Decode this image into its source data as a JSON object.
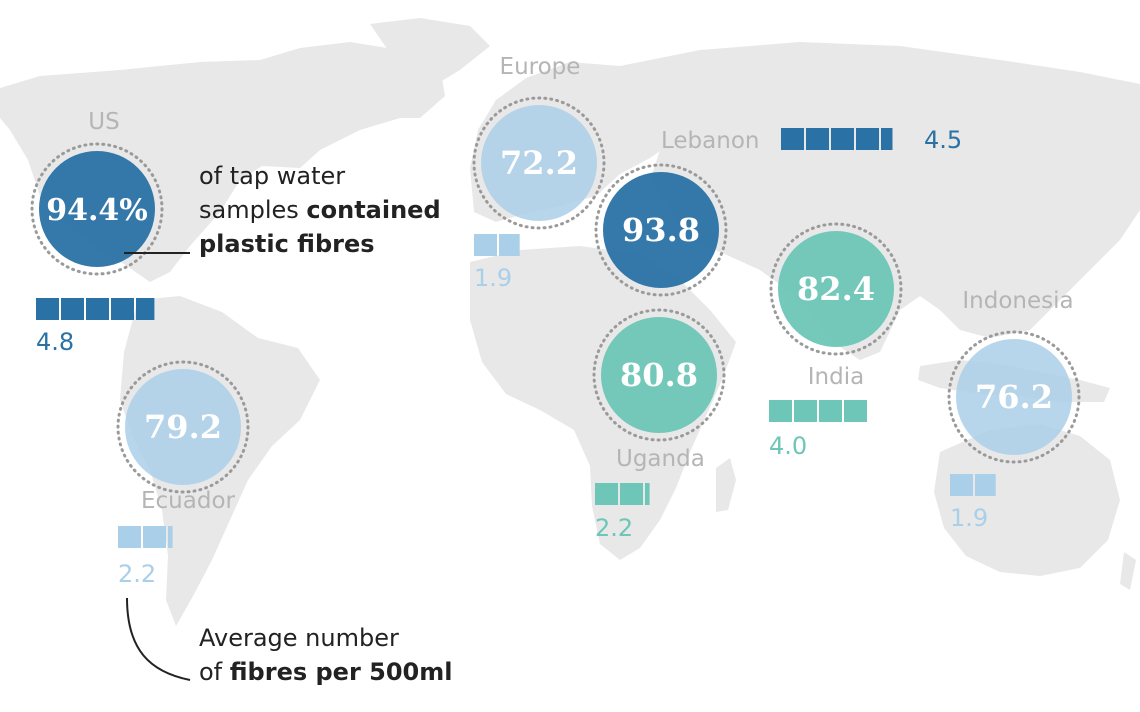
{
  "colors": {
    "land": "#e8e8e8",
    "high": "#2a72a6",
    "mid_blue": "#aacfe9",
    "teal": "#6dc6b7",
    "ring": "#9a9a9a",
    "label_grey": "#b5b5b5",
    "text": "#222222"
  },
  "annotations": {
    "percent_note": {
      "line1": "of tap water",
      "line2_plain": "samples ",
      "line2_bold": "contained",
      "line3_bold": "plastic fibres"
    },
    "fibre_note": {
      "line1": "Average number",
      "line2_plain": "of ",
      "line2_bold": "fibres per 500ml"
    }
  },
  "countries": [
    {
      "name": "US",
      "percent": 94.4,
      "percent_label": "94.4%",
      "fibres": 4.8,
      "fibres_label": "4.8",
      "color_key": "high"
    },
    {
      "name": "Ecuador",
      "percent": 79.2,
      "percent_label": "79.2",
      "fibres": 2.2,
      "fibres_label": "2.2",
      "color_key": "mid_blue"
    },
    {
      "name": "Europe",
      "percent": 72.2,
      "percent_label": "72.2",
      "fibres": 1.9,
      "fibres_label": "1.9",
      "color_key": "mid_blue"
    },
    {
      "name": "Lebanon",
      "percent": 93.8,
      "percent_label": "93.8",
      "fibres": 4.5,
      "fibres_label": "4.5",
      "color_key": "high"
    },
    {
      "name": "Uganda",
      "percent": 80.8,
      "percent_label": "80.8",
      "fibres": 2.2,
      "fibres_label": "2.2",
      "color_key": "teal"
    },
    {
      "name": "India",
      "percent": 82.4,
      "percent_label": "82.4",
      "fibres": 4.0,
      "fibres_label": "4.0",
      "color_key": "teal"
    },
    {
      "name": "Indonesia",
      "percent": 76.2,
      "percent_label": "76.2",
      "fibres": 1.9,
      "fibres_label": "1.9",
      "color_key": "mid_blue"
    }
  ]
}
